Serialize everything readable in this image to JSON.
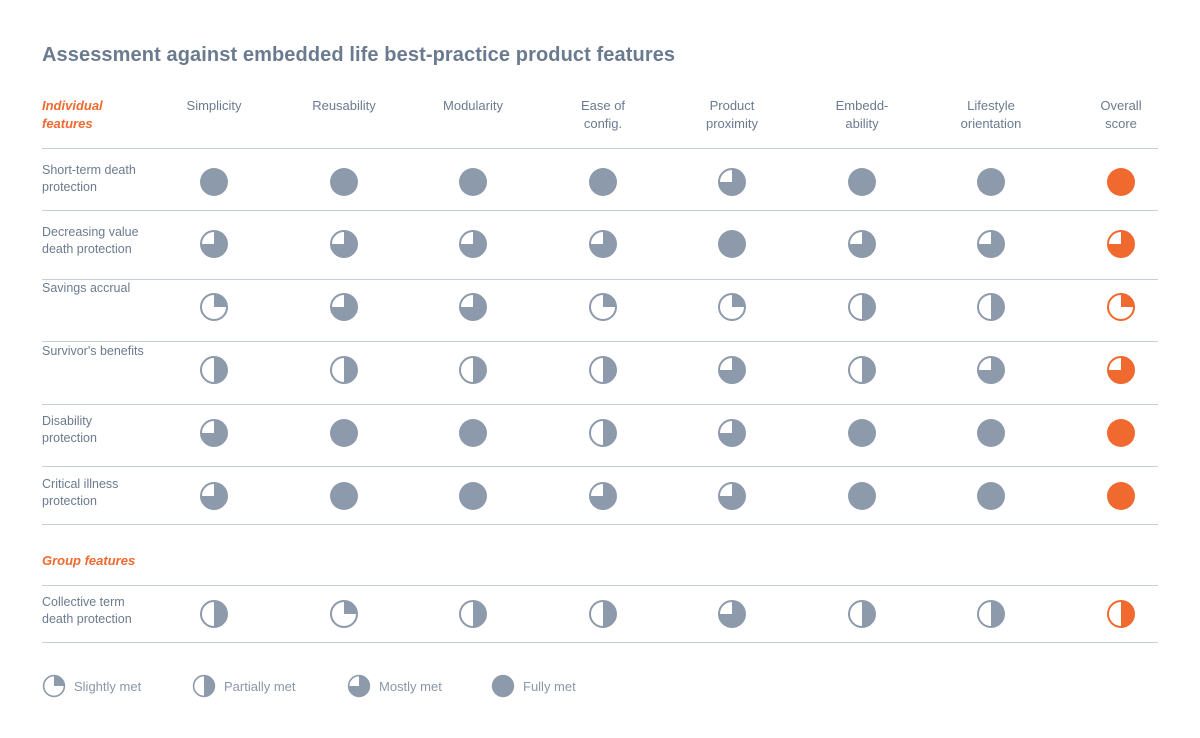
{
  "title": "Assessment against embedded life best-practice product features",
  "individual_label": [
    "Individual",
    "features"
  ],
  "group_label": "Group features",
  "colors": {
    "gray": "#8d9aab",
    "orange": "#f0692e"
  },
  "columns": [
    {
      "lines": [
        "Simplicity"
      ]
    },
    {
      "lines": [
        "Reusability"
      ]
    },
    {
      "lines": [
        "Modularity"
      ]
    },
    {
      "lines": [
        "Ease of",
        "config."
      ]
    },
    {
      "lines": [
        "Product",
        "proximity"
      ]
    },
    {
      "lines": [
        "Embedd-",
        "ability"
      ]
    },
    {
      "lines": [
        "Lifestyle",
        "orientation"
      ]
    },
    {
      "lines": [
        "Overall",
        "score"
      ]
    }
  ],
  "rows": [
    {
      "lines": [
        "Short-term death",
        "protection"
      ],
      "scores": [
        4,
        4,
        4,
        4,
        3,
        4,
        4,
        4
      ]
    },
    {
      "lines": [
        "Decreasing value",
        "death protection"
      ],
      "scores": [
        3,
        3,
        3,
        3,
        4,
        3,
        3,
        3
      ]
    },
    {
      "lines": [
        "Savings accrual"
      ],
      "scores": [
        1,
        3,
        3,
        1,
        1,
        2,
        2,
        1
      ]
    },
    {
      "lines": [
        "Survivor's benefits"
      ],
      "scores": [
        2,
        2,
        2,
        2,
        3,
        2,
        3,
        3
      ]
    },
    {
      "lines": [
        "Disability",
        "protection"
      ],
      "scores": [
        3,
        4,
        4,
        2,
        3,
        4,
        4,
        4
      ]
    },
    {
      "lines": [
        "Critical illness",
        "protection"
      ],
      "scores": [
        3,
        4,
        4,
        3,
        3,
        4,
        4,
        4
      ]
    }
  ],
  "group_rows": [
    {
      "lines": [
        "Collective term",
        "death protection"
      ],
      "scores": [
        2,
        1,
        2,
        2,
        3,
        2,
        2,
        2
      ]
    }
  ],
  "legend": [
    {
      "level": 1,
      "label": "Slightly met"
    },
    {
      "level": 2,
      "label": "Partially met"
    },
    {
      "level": 3,
      "label": "Mostly met"
    },
    {
      "level": 4,
      "label": "Fully met"
    }
  ]
}
